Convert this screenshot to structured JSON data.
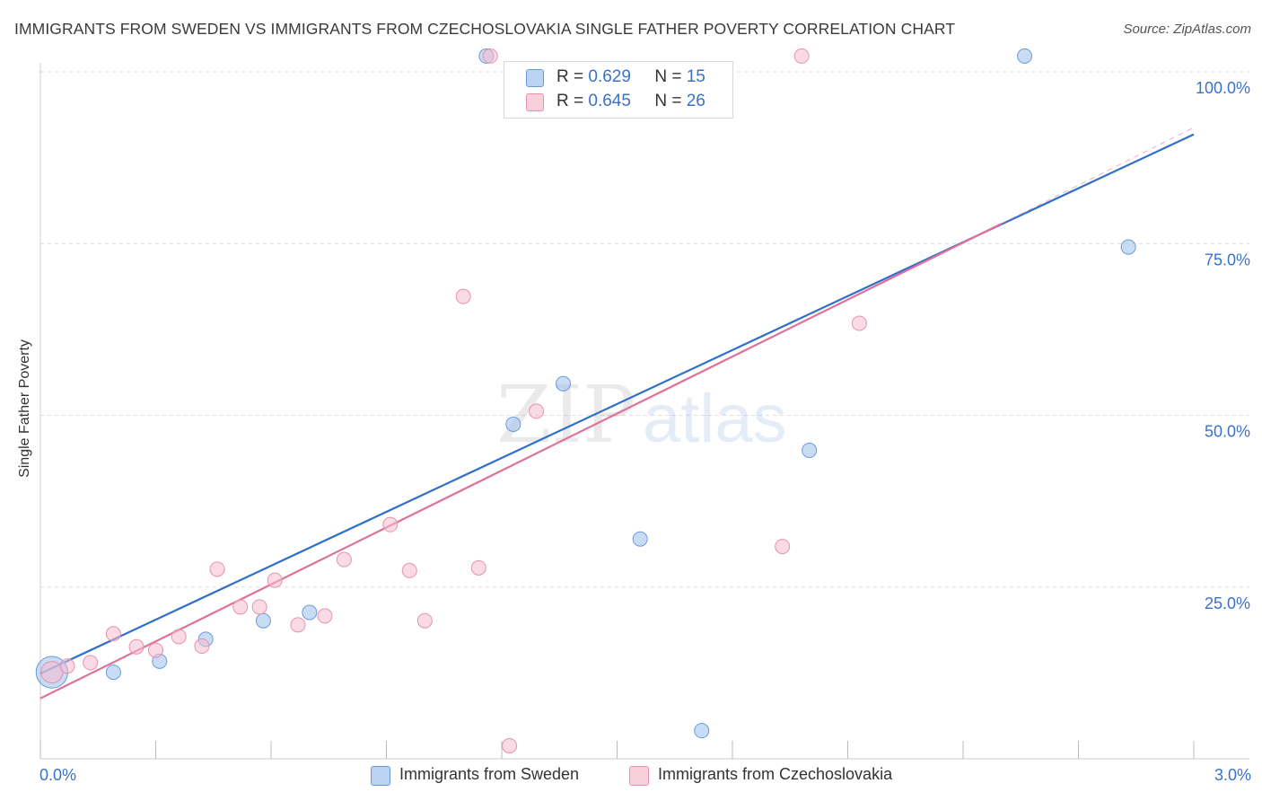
{
  "chart_data": {
    "type": "scatter",
    "title": "IMMIGRANTS FROM SWEDEN VS IMMIGRANTS FROM CZECHOSLOVAKIA SINGLE FATHER POVERTY CORRELATION CHART",
    "source": "Source: ZipAtlas.com",
    "ylabel": "Single Father Poverty",
    "xlim": [
      0,
      3.0
    ],
    "ylim": [
      0,
      100
    ],
    "x_tick_labels": [
      "0.0%",
      "3.0%"
    ],
    "y_ticks": [
      {
        "value": 25,
        "label": "25.0%"
      },
      {
        "value": 50,
        "label": "50.0%"
      },
      {
        "value": 75,
        "label": "75.0%"
      },
      {
        "value": 100,
        "label": "100.0%"
      }
    ],
    "watermark": "ZIPatlas",
    "series": [
      {
        "name": "Immigrants from Sweden",
        "color": "#9dbfee",
        "stroke": "#6b9ad8",
        "line_color": "#2f6fcc",
        "R": "0.629",
        "N": "15",
        "trend": {
          "x": [
            0.0,
            3.0
          ],
          "y": [
            12.4,
            90.9
          ]
        },
        "points": [
          {
            "x": 0.03,
            "y": 12.6,
            "size": 2.2
          },
          {
            "x": 0.19,
            "y": 12.6,
            "size": 1
          },
          {
            "x": 0.31,
            "y": 14.2,
            "size": 1
          },
          {
            "x": 0.43,
            "y": 17.4,
            "size": 1
          },
          {
            "x": 0.58,
            "y": 20.1,
            "size": 1
          },
          {
            "x": 0.7,
            "y": 21.3,
            "size": 1
          },
          {
            "x": 1.16,
            "y": 102.3,
            "size": 1
          },
          {
            "x": 1.23,
            "y": 48.7,
            "size": 1
          },
          {
            "x": 1.36,
            "y": 54.6,
            "size": 1
          },
          {
            "x": 1.56,
            "y": 32.0,
            "size": 1
          },
          {
            "x": 1.72,
            "y": 4.1,
            "size": 1
          },
          {
            "x": 2.0,
            "y": 44.9,
            "size": 1
          },
          {
            "x": 2.56,
            "y": 102.3,
            "size": 1
          },
          {
            "x": 2.83,
            "y": 74.5,
            "size": 1
          }
        ]
      },
      {
        "name": "Immigrants from Czechoslovakia",
        "color": "#f6bccd",
        "stroke": "#e593ad",
        "line_color": "#e0709a",
        "R": "0.645",
        "N": "26",
        "trend": {
          "x": [
            0.0,
            2.5
          ],
          "y": [
            8.8,
            77.9
          ]
        },
        "trend_ext": {
          "x": [
            2.5,
            3.0
          ],
          "y": [
            77.9,
            91.9
          ]
        },
        "points": [
          {
            "x": 0.03,
            "y": 12.6,
            "size": 1.5
          },
          {
            "x": 0.07,
            "y": 13.5,
            "size": 1
          },
          {
            "x": 0.13,
            "y": 14.0,
            "size": 1
          },
          {
            "x": 0.19,
            "y": 18.2,
            "size": 1
          },
          {
            "x": 0.25,
            "y": 16.3,
            "size": 1
          },
          {
            "x": 0.3,
            "y": 15.8,
            "size": 1
          },
          {
            "x": 0.36,
            "y": 17.8,
            "size": 1
          },
          {
            "x": 0.42,
            "y": 16.4,
            "size": 1
          },
          {
            "x": 0.46,
            "y": 27.6,
            "size": 1
          },
          {
            "x": 0.52,
            "y": 22.1,
            "size": 1
          },
          {
            "x": 0.57,
            "y": 22.1,
            "size": 1
          },
          {
            "x": 0.61,
            "y": 26.0,
            "size": 1
          },
          {
            "x": 0.67,
            "y": 19.5,
            "size": 1
          },
          {
            "x": 0.74,
            "y": 20.8,
            "size": 1
          },
          {
            "x": 0.79,
            "y": 29.0,
            "size": 1
          },
          {
            "x": 0.91,
            "y": 34.1,
            "size": 1
          },
          {
            "x": 0.96,
            "y": 27.4,
            "size": 1
          },
          {
            "x": 1.0,
            "y": 20.1,
            "size": 1
          },
          {
            "x": 1.1,
            "y": 67.3,
            "size": 1
          },
          {
            "x": 1.14,
            "y": 27.8,
            "size": 1
          },
          {
            "x": 1.17,
            "y": 102.3,
            "size": 1
          },
          {
            "x": 1.22,
            "y": 1.9,
            "size": 1
          },
          {
            "x": 1.29,
            "y": 50.6,
            "size": 1
          },
          {
            "x": 1.93,
            "y": 30.9,
            "size": 1
          },
          {
            "x": 1.98,
            "y": 102.3,
            "size": 1
          },
          {
            "x": 2.13,
            "y": 63.4,
            "size": 1
          }
        ]
      }
    ]
  },
  "legend": {
    "r_label": "R =",
    "n_label": "N ="
  }
}
